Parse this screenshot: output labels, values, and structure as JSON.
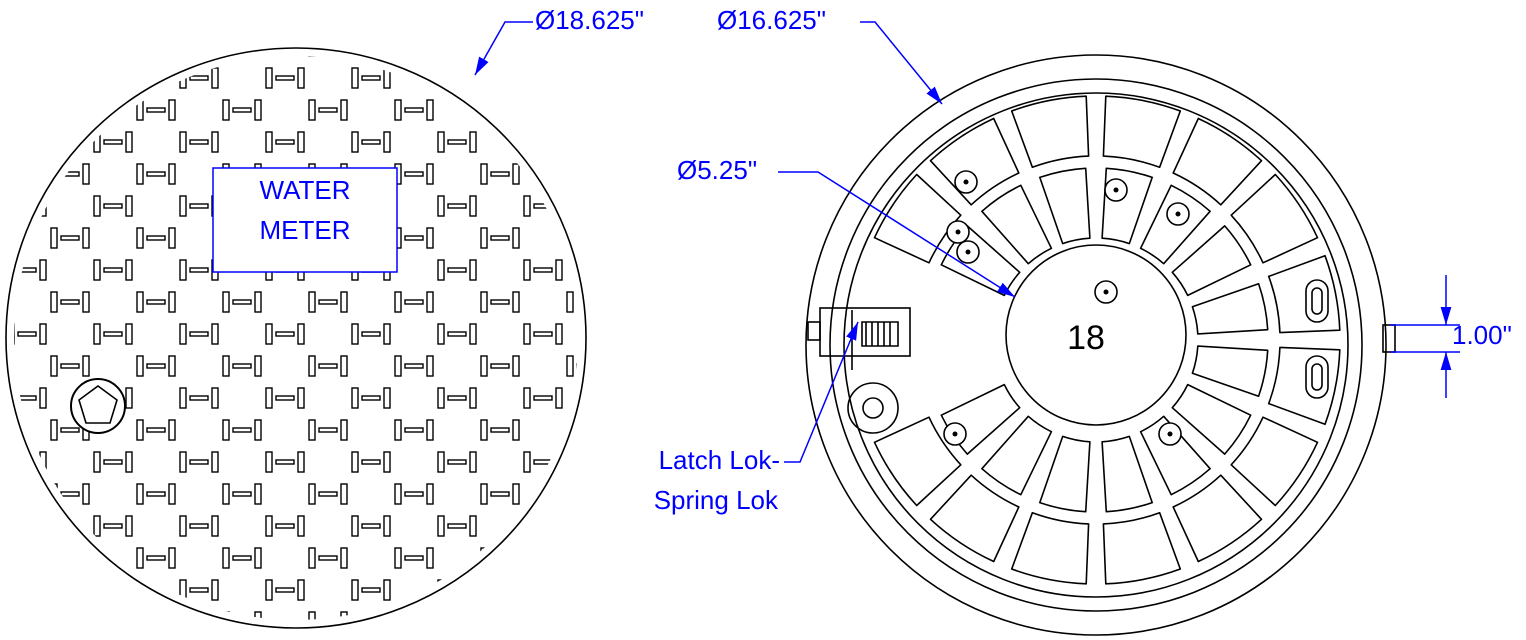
{
  "left_cover": {
    "label_lines": [
      "WATER",
      "METER"
    ],
    "diameter": "Ø18.625\""
  },
  "right_frame": {
    "diameter": "Ø16.625\"",
    "center_diameter": "Ø5.25\"",
    "center_number": "18",
    "lug_width": "1.00\"",
    "latch_lines": [
      "Latch Lok-",
      "Spring Lok"
    ]
  }
}
